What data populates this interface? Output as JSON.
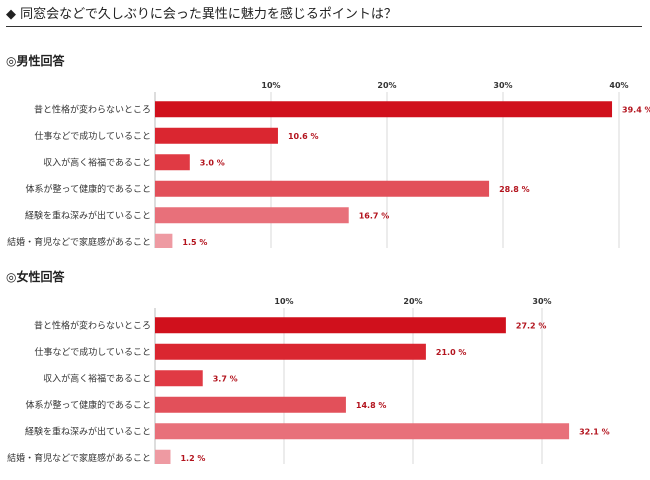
{
  "title": "◆ 同窓会などで久しぶりに会った異性に魅力を感じるポイントは？",
  "chart_data": [
    {
      "type": "bar",
      "orientation": "horizontal",
      "title": "◎男性回答",
      "categories": [
        "昔と性格が変わらないところ",
        "仕事などで成功していること",
        "収入が高く裕福であること",
        "体系が整って健康的であること",
        "経験を重ね深みが出ていること",
        "結婚・育児などで家庭感があること"
      ],
      "values": [
        39.4,
        10.6,
        3.0,
        28.8,
        16.7,
        1.5
      ],
      "value_labels": [
        "39.4 %",
        "10.6 %",
        "3.0 %",
        "28.8 %",
        "16.7 %",
        "1.5 %"
      ],
      "ticks": [
        10,
        20,
        30,
        40
      ],
      "tick_labels": [
        "10%",
        "20%",
        "30%",
        "40%"
      ],
      "xlim": [
        0,
        40
      ],
      "grid": true,
      "colors": [
        "#d0101c",
        "#da2630",
        "#e03a44",
        "#e2505a",
        "#e8707a",
        "#ee9aa2"
      ]
    },
    {
      "type": "bar",
      "orientation": "horizontal",
      "title": "◎女性回答",
      "categories": [
        "昔と性格が変わらないところ",
        "仕事などで成功していること",
        "収入が高く裕福であること",
        "体系が整って健康的であること",
        "経験を重ね深みが出ていること",
        "結婚・育児などで家庭感があること"
      ],
      "values": [
        27.2,
        21.0,
        3.7,
        14.8,
        32.1,
        1.2
      ],
      "value_labels": [
        "27.2 %",
        "21.0 %",
        "3.7 %",
        "14.8 %",
        "32.1 %",
        "1.2 %"
      ],
      "ticks": [
        10,
        20,
        30
      ],
      "tick_labels": [
        "10%",
        "20%",
        "30%"
      ],
      "xlim": [
        0,
        30
      ],
      "grid": true,
      "colors": [
        "#d0101c",
        "#da2630",
        "#e03a44",
        "#e2505a",
        "#e8707a",
        "#ee9aa2"
      ]
    }
  ]
}
